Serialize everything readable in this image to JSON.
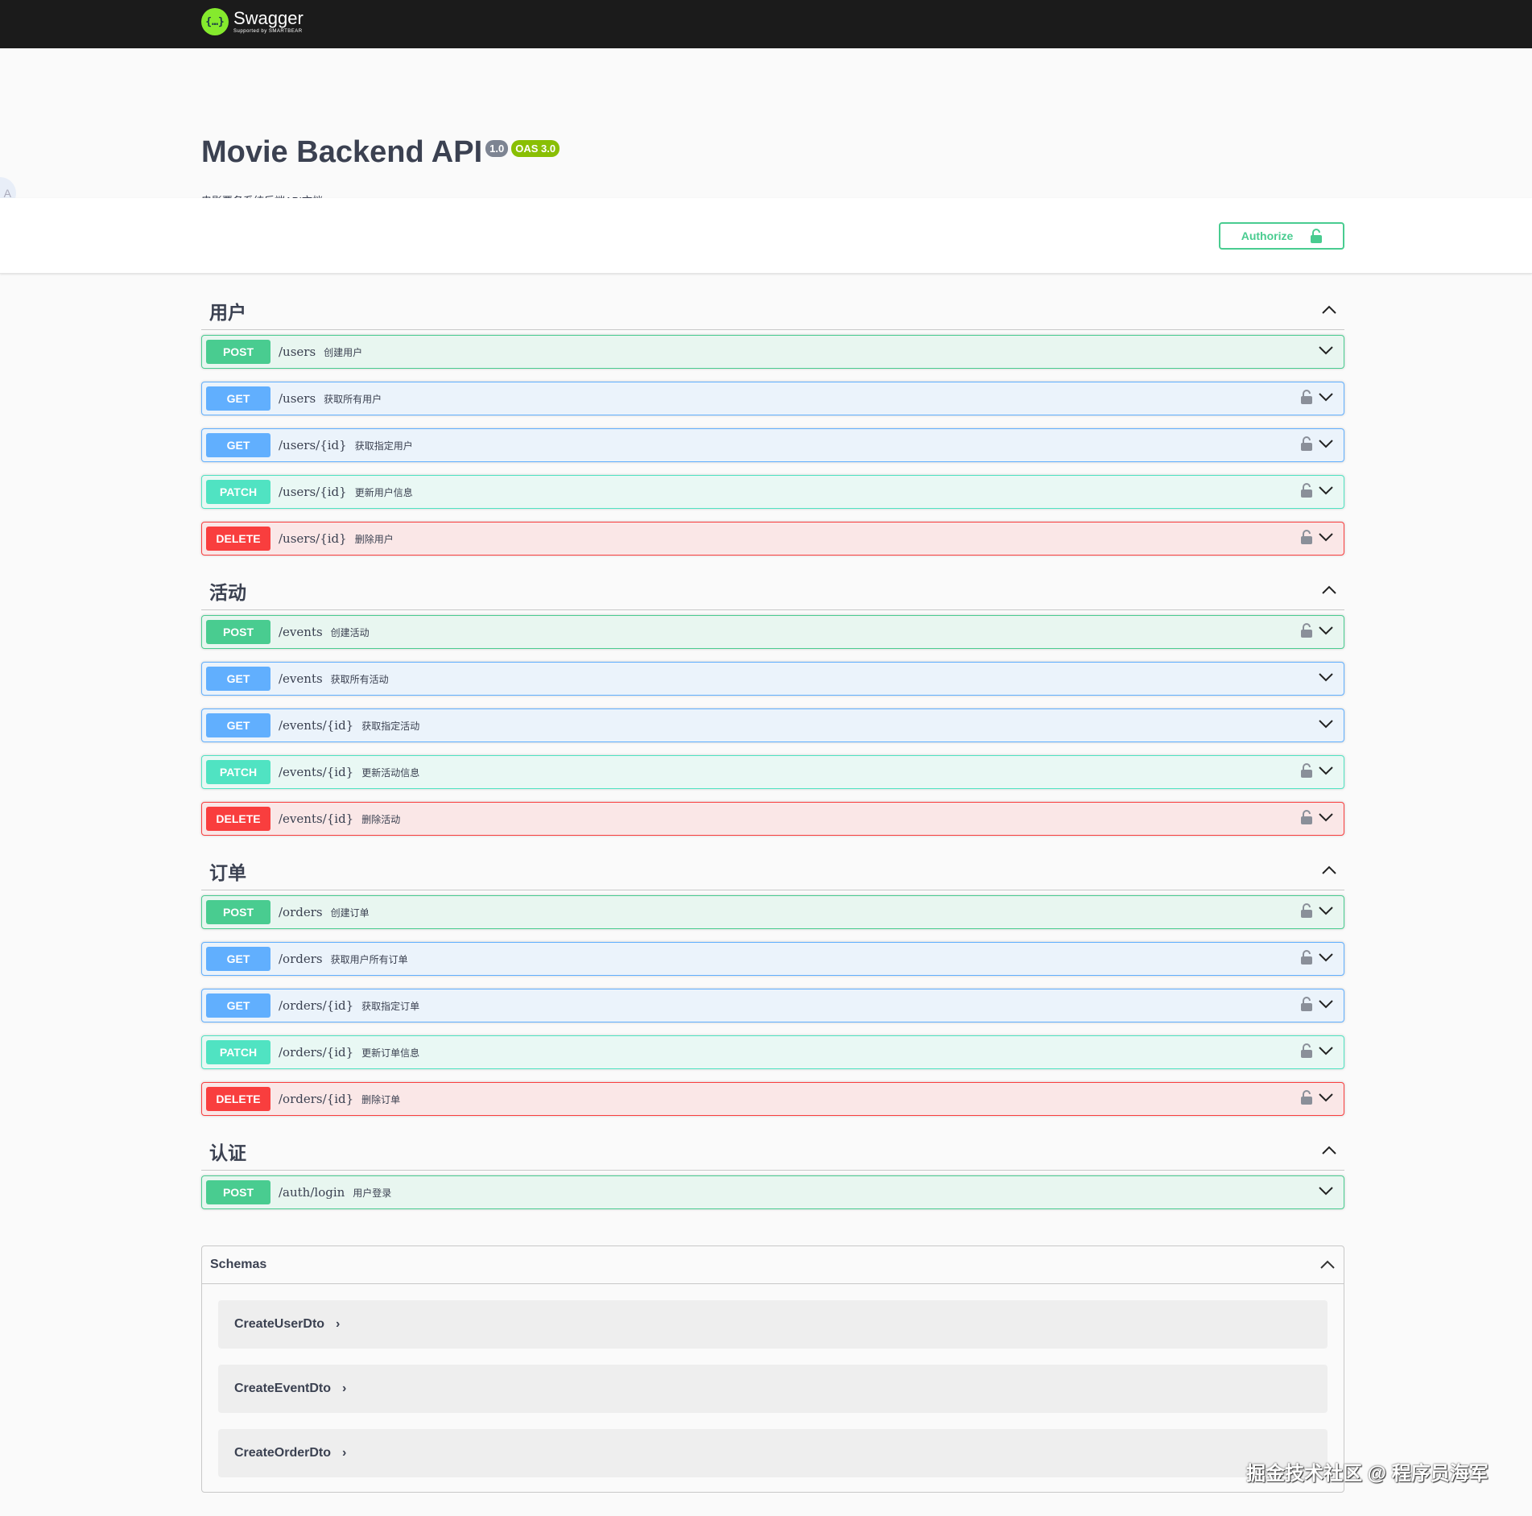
{
  "topbar": {
    "logo_name": "Swagger",
    "logo_sub": "Supported by SMARTBEAR",
    "logo_glyph": "{…}"
  },
  "info": {
    "title": "Movie Backend API",
    "version": "1.0",
    "oas": "OAS 3.0",
    "description": "电影票务系统后端API文档",
    "translate_icon": "A"
  },
  "authorize": {
    "label": "Authorize"
  },
  "tags": [
    {
      "name": "用户",
      "ops": [
        {
          "method": "POST",
          "path": "/users",
          "summary": "创建用户",
          "locked": false
        },
        {
          "method": "GET",
          "path": "/users",
          "summary": "获取所有用户",
          "locked": true
        },
        {
          "method": "GET",
          "path": "/users/{id}",
          "summary": "获取指定用户",
          "locked": true
        },
        {
          "method": "PATCH",
          "path": "/users/{id}",
          "summary": "更新用户信息",
          "locked": true
        },
        {
          "method": "DELETE",
          "path": "/users/{id}",
          "summary": "删除用户",
          "locked": true
        }
      ]
    },
    {
      "name": "活动",
      "ops": [
        {
          "method": "POST",
          "path": "/events",
          "summary": "创建活动",
          "locked": true
        },
        {
          "method": "GET",
          "path": "/events",
          "summary": "获取所有活动",
          "locked": false
        },
        {
          "method": "GET",
          "path": "/events/{id}",
          "summary": "获取指定活动",
          "locked": false
        },
        {
          "method": "PATCH",
          "path": "/events/{id}",
          "summary": "更新活动信息",
          "locked": true
        },
        {
          "method": "DELETE",
          "path": "/events/{id}",
          "summary": "删除活动",
          "locked": true
        }
      ]
    },
    {
      "name": "订单",
      "ops": [
        {
          "method": "POST",
          "path": "/orders",
          "summary": "创建订单",
          "locked": true
        },
        {
          "method": "GET",
          "path": "/orders",
          "summary": "获取用户所有订单",
          "locked": true
        },
        {
          "method": "GET",
          "path": "/orders/{id}",
          "summary": "获取指定订单",
          "locked": true
        },
        {
          "method": "PATCH",
          "path": "/orders/{id}",
          "summary": "更新订单信息",
          "locked": true
        },
        {
          "method": "DELETE",
          "path": "/orders/{id}",
          "summary": "删除订单",
          "locked": true
        }
      ]
    },
    {
      "name": "认证",
      "ops": [
        {
          "method": "POST",
          "path": "/auth/login",
          "summary": "用户登录",
          "locked": false
        }
      ]
    }
  ],
  "schemas": {
    "title": "Schemas",
    "models": [
      "CreateUserDto",
      "CreateEventDto",
      "CreateOrderDto"
    ]
  },
  "watermark": "掘金技术社区 @ 程序员海军",
  "colors": {
    "post": "#49cc90",
    "get": "#61affe",
    "patch": "#50e3c2",
    "delete": "#f93e3e",
    "topbar": "#1b1b1b"
  }
}
